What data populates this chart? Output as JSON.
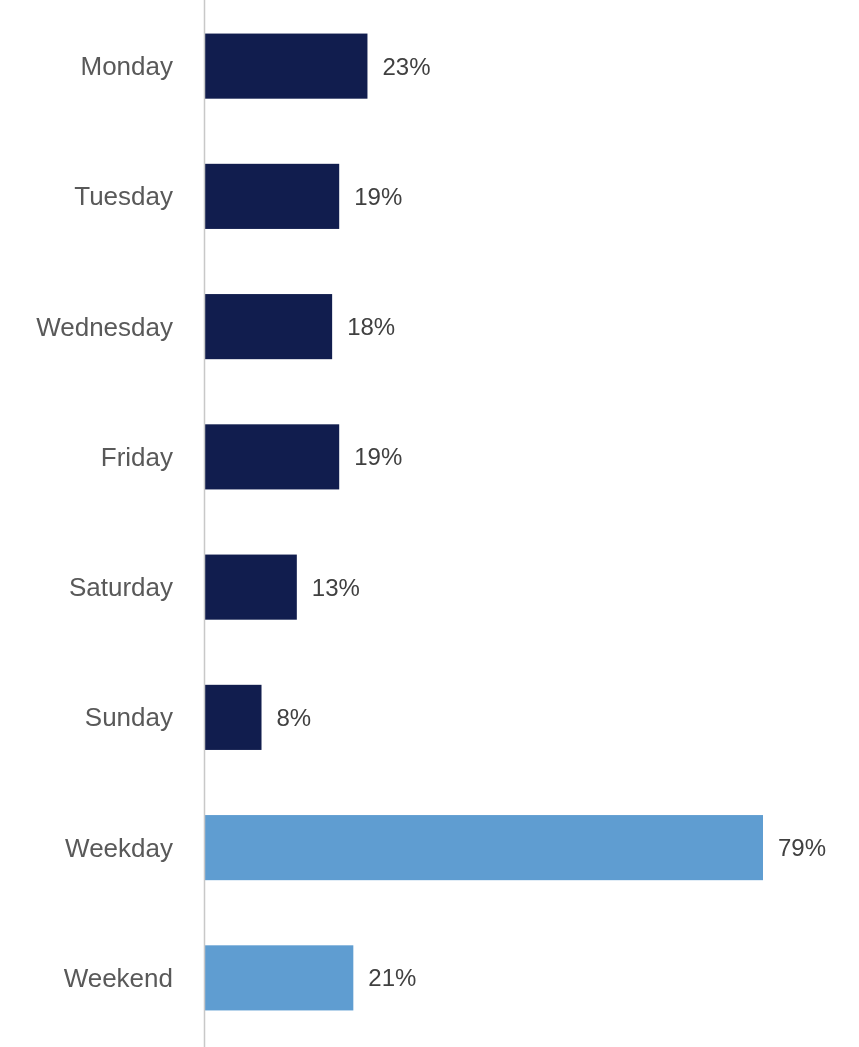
{
  "chart_data": {
    "type": "bar",
    "orientation": "horizontal",
    "categories": [
      "Monday",
      "Tuesday",
      "Wednesday",
      "Friday",
      "Saturday",
      "Sunday",
      "Weekday",
      "Weekend"
    ],
    "values": [
      23,
      19,
      18,
      19,
      13,
      8,
      79,
      21
    ],
    "colors": [
      "#111d4e",
      "#111d4e",
      "#111d4e",
      "#111d4e",
      "#111d4e",
      "#111d4e",
      "#5f9dd1",
      "#5f9dd1"
    ],
    "value_labels": [
      "23%",
      "19%",
      "18%",
      "19%",
      "13%",
      "8%",
      "79%",
      "21%"
    ]
  }
}
